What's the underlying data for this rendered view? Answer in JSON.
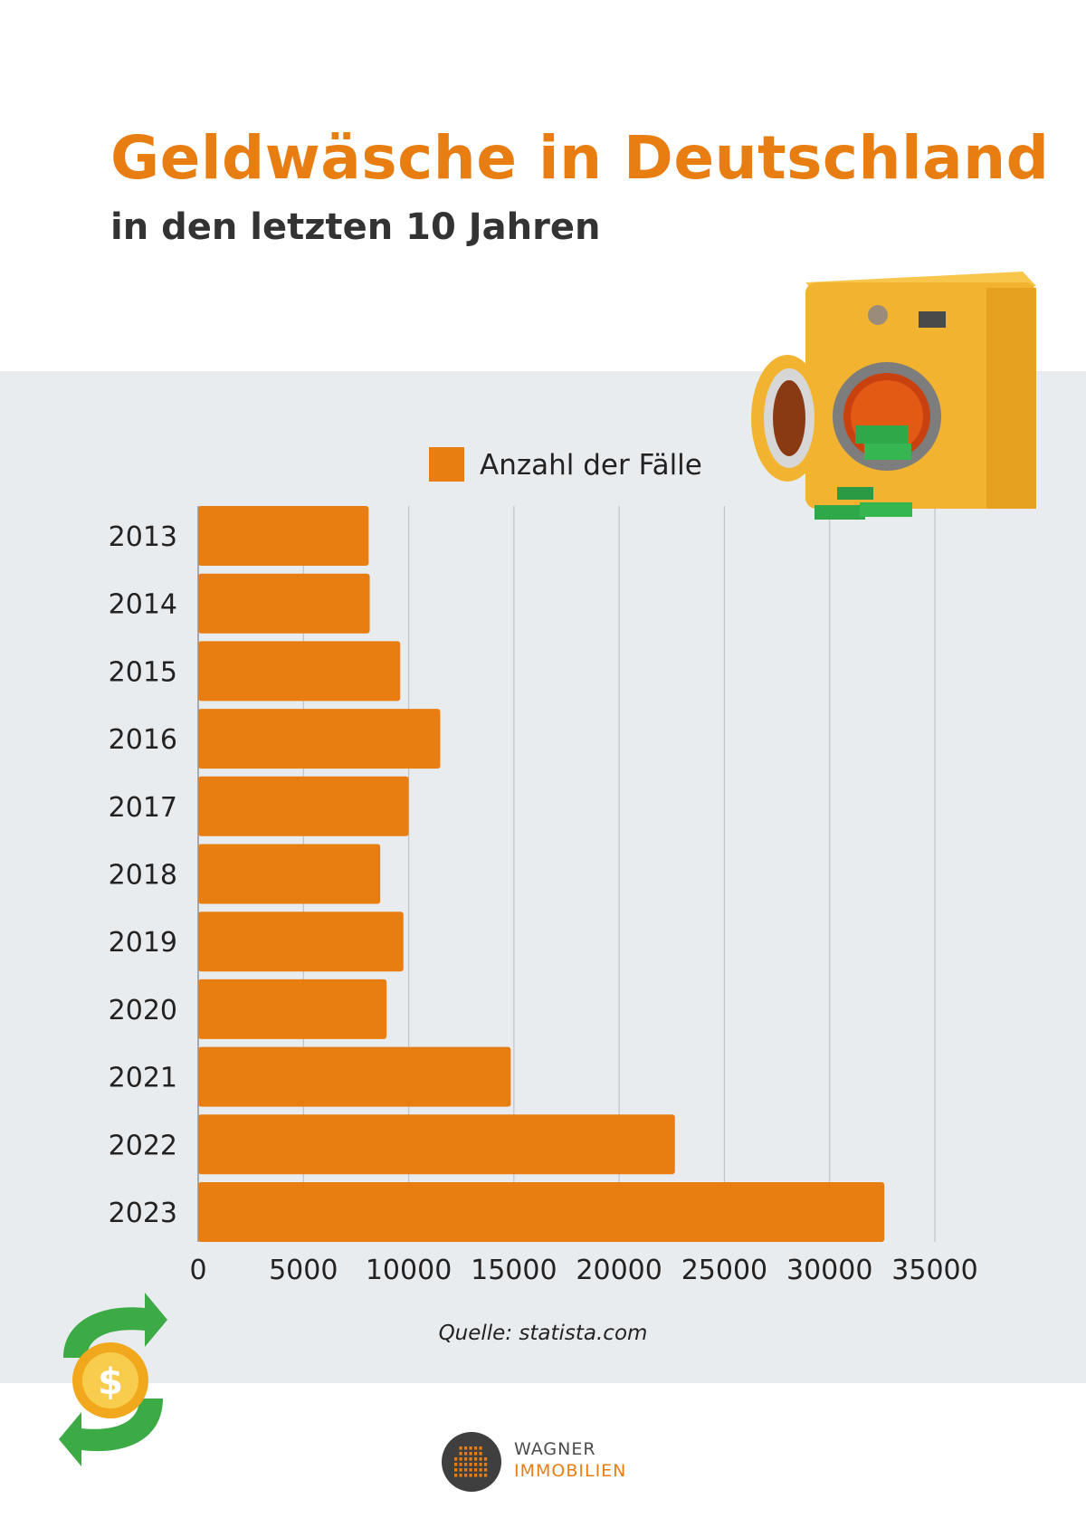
{
  "header": {
    "title": "Geldwäsche in Deutschland",
    "subtitle": "in den letzten 10 Jahren"
  },
  "chart_data": {
    "type": "bar",
    "orientation": "horizontal",
    "categories": [
      "2013",
      "2014",
      "2015",
      "2016",
      "2017",
      "2018",
      "2019",
      "2020",
      "2021",
      "2022",
      "2023"
    ],
    "series": [
      {
        "name": "Anzahl der Fälle",
        "values": [
          8100,
          8150,
          9600,
          11500,
          10000,
          8650,
          9750,
          8950,
          14850,
          22650,
          32600
        ]
      }
    ],
    "xticks": [
      "0",
      "5000",
      "10000",
      "15000",
      "20000",
      "25000",
      "30000",
      "35000"
    ],
    "xlim": [
      0,
      35000
    ],
    "grid": "vertical",
    "legend": "top",
    "colors": {
      "bar": "#e87e11",
      "grid": "#bfc4c9",
      "panel": "#e9ecef",
      "accent": "#e87e11"
    }
  },
  "source": "Quelle: statista.com",
  "logo": {
    "line1": "WAGNER",
    "line2": "IMMOBILIEN"
  },
  "decorations": {
    "top_right": "washing-machine-with-money-icon",
    "bottom_left": "dollar-coin-exchange-arrows-icon",
    "logo_mark": "building-grid-icon"
  }
}
